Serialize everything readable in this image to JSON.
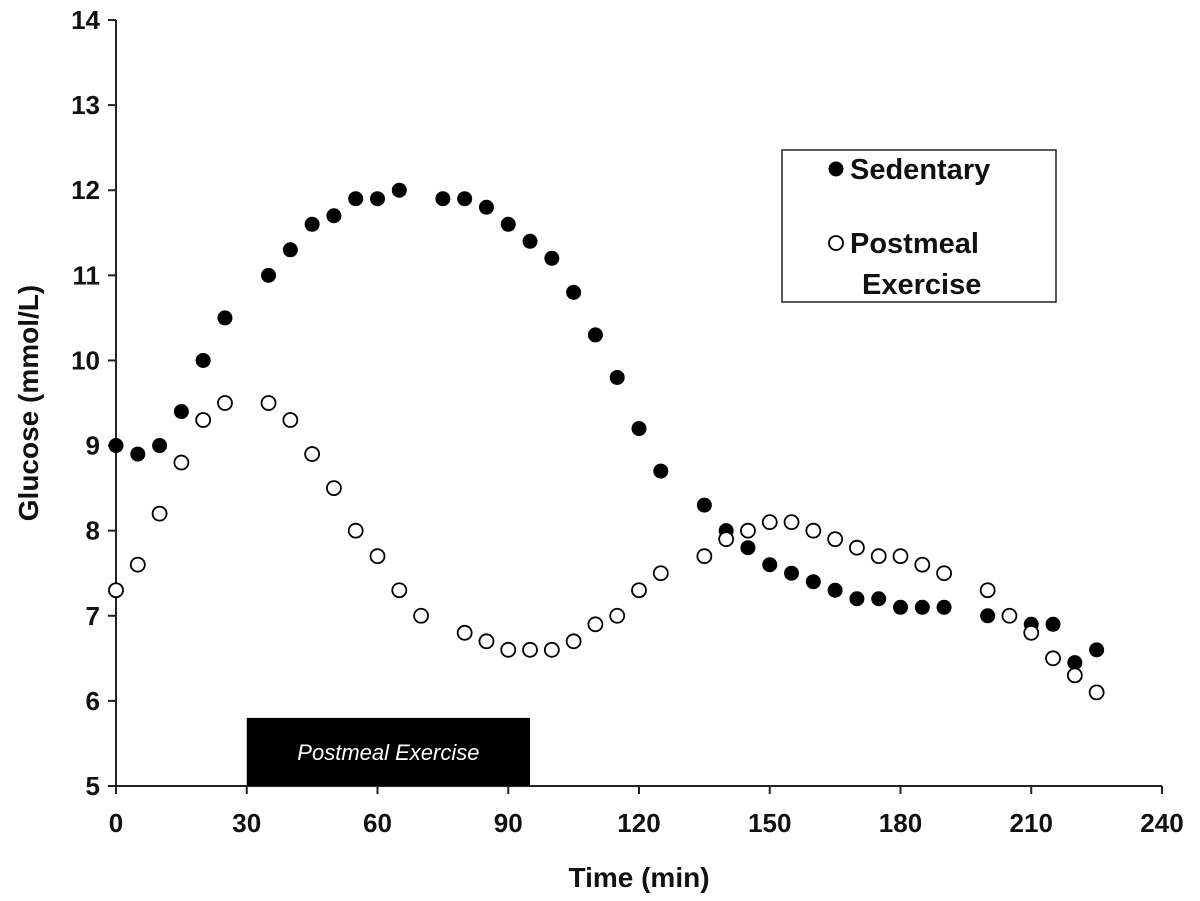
{
  "chart_data": {
    "type": "scatter",
    "title": "",
    "xlabel": "Time (min)",
    "ylabel": "Glucose (mmol/L)",
    "xlim": [
      0,
      240
    ],
    "ylim": [
      5,
      14
    ],
    "xticks": [
      0,
      30,
      60,
      90,
      120,
      150,
      180,
      210,
      240
    ],
    "yticks": [
      5,
      6,
      7,
      8,
      9,
      10,
      11,
      12,
      13,
      14
    ],
    "grid": false,
    "legend_position": "top-right",
    "annotation": {
      "label": "Postmeal Exercise",
      "x_start": 30,
      "x_end": 95,
      "y_bottom": 5,
      "y_top": 5.8,
      "fill": "#000000"
    },
    "series": [
      {
        "name": "Sedentary",
        "marker": "filled",
        "color": "#000000",
        "x": [
          0,
          5,
          10,
          15,
          20,
          25,
          35,
          40,
          45,
          50,
          55,
          60,
          65,
          75,
          80,
          85,
          90,
          95,
          100,
          105,
          110,
          115,
          120,
          125,
          135,
          140,
          145,
          150,
          155,
          160,
          165,
          170,
          175,
          180,
          185,
          190,
          200,
          210,
          215,
          220,
          225
        ],
        "y": [
          9.0,
          8.9,
          9.0,
          9.4,
          10.0,
          10.5,
          11.0,
          11.3,
          11.6,
          11.7,
          11.9,
          11.9,
          12.0,
          11.9,
          11.9,
          11.8,
          11.6,
          11.4,
          11.2,
          10.8,
          10.3,
          9.8,
          9.2,
          8.7,
          8.3,
          8.0,
          7.8,
          7.6,
          7.5,
          7.4,
          7.3,
          7.2,
          7.2,
          7.1,
          7.1,
          7.1,
          7.0,
          6.9,
          6.9,
          6.45,
          6.6
        ]
      },
      {
        "name": "Postmeal\nExercise",
        "marker": "open",
        "color": "#000000",
        "x": [
          0,
          5,
          10,
          15,
          20,
          25,
          35,
          40,
          45,
          50,
          55,
          60,
          65,
          70,
          80,
          85,
          90,
          95,
          100,
          105,
          110,
          115,
          120,
          125,
          135,
          140,
          145,
          150,
          155,
          160,
          165,
          170,
          175,
          180,
          185,
          190,
          200,
          205,
          210,
          215,
          220,
          225
        ],
        "y": [
          7.3,
          7.6,
          8.2,
          8.8,
          9.3,
          9.5,
          9.5,
          9.3,
          8.9,
          8.5,
          8.0,
          7.7,
          7.3,
          7.0,
          6.8,
          6.7,
          6.6,
          6.6,
          6.6,
          6.7,
          6.9,
          7.0,
          7.3,
          7.5,
          7.7,
          7.9,
          8.0,
          8.1,
          8.1,
          8.0,
          7.9,
          7.8,
          7.7,
          7.7,
          7.6,
          7.5,
          7.3,
          7.0,
          6.8,
          6.5,
          6.3,
          6.1
        ]
      }
    ],
    "legend_entries": [
      "Sedentary",
      "Postmeal",
      "Exercise"
    ]
  }
}
